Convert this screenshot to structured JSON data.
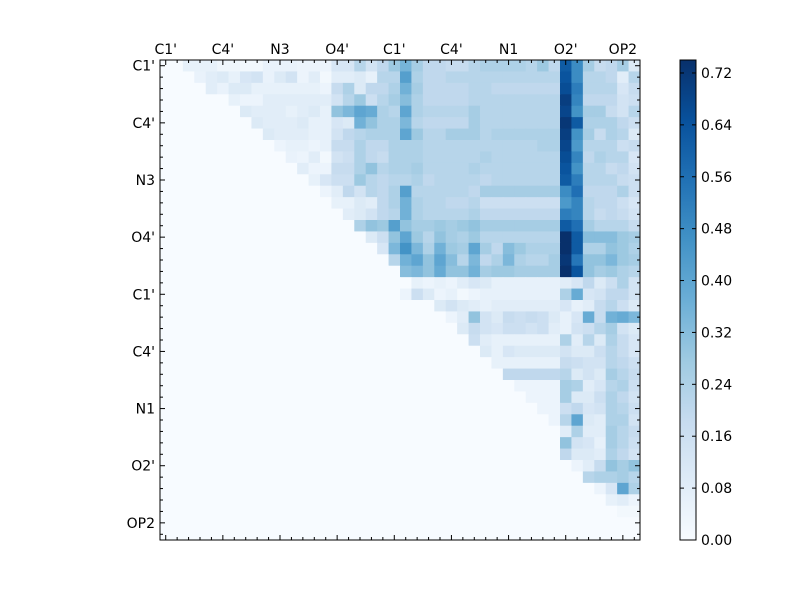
{
  "chart_data": {
    "type": "heatmap",
    "title": "",
    "colormap": "Blues",
    "row_labels": [
      "C1'",
      "C4'",
      "N3",
      "O4'",
      "C1'",
      "C4'",
      "N1",
      "O2'",
      "OP2"
    ],
    "col_labels": [
      "C1'",
      "C4'",
      "N3",
      "O4'",
      "C1'",
      "C4'",
      "N1",
      "O2'",
      "OP2"
    ],
    "n": 42,
    "label_positions": [
      0,
      5,
      10,
      15,
      20,
      25,
      30,
      35,
      40
    ],
    "upper_triangular": true,
    "colorbar": {
      "min": 0.0,
      "max": 0.74,
      "ticks": [
        "0.00",
        "0.08",
        "0.16",
        "0.24",
        "0.32",
        "0.40",
        "0.48",
        "0.56",
        "0.64",
        "0.72"
      ],
      "tick_values": [
        0.0,
        0.08,
        0.16,
        0.24,
        0.32,
        0.4,
        0.48,
        0.56,
        0.64,
        0.72
      ]
    },
    "rows": [
      "0:0.00;2-4:0.06;5-6:0.03;7-8:0.02;9-11:0.05;12-14:0.04;15-16:0.12;17:0.22;18:0.14;19:0.20;20:0.28;21:0.35;22:0.26;23-24:0.20;25-26:0.18;27:0.22;28-31:0.24;32:0.22;33:0.28;34:0.20;35:0.62;36:0.48;37:0.26;38:0.18;39:0.20;40:0.26;41:0.10",
      "1:0.00;3:0.05;4:0.08;5:0.10;6:0.06;7:0.12;8:0.14;9:0.05;10:0.10;11:0.14;12:0.04;13:0.08;14:0.02;15-16:0.08;17:0.10;18:0.06;19-20:0.22;21:0.42;22:0.24;23-24:0.20;25-28:0.22;29-34:0.22;35:0.64;36:0.48;37-38:0.22;39:0.20;40:0.08;41:0.22",
      "2:0.00;4:0.08;5:0.05;6-7:0.10;8:0.06;9-13:0.06;14:0.04;15:0.18;16:0.24;17:0.10;18-19:0.20;20:0.24;21:0.36;22:0.26;23-26:0.20;27-28:0.22;29-34:0.20;35:0.66;36:0.52;37-39:0.22;40:0.12;41:0.18",
      "3:0.00;6:0.06;7-8:0.04;9-11:0.08;12-14:0.08;15:0.14;16:0.22;17:0.28;18:0.16;19:0.22;20:0.26;21:0.32;22:0.24;23-26:0.20;27-28:0.22;29-34:0.22;35:0.70;36:0.50;37-39:0.20;40:0.14;41:0.16",
      "4:0.00;7:0.10;8-10:0.08;11:0.06;12:0.08;13:0.10;14:0.06;15:0.30;16:0.34;17:0.40;18:0.38;19:0.24;20:0.22;21:0.40;22:0.24;23-26:0.22;27:0.26;28-34:0.22;35:0.68;36:0.46;37-38:0.26;39:0.18;40:0.14;41:0.22",
      "5:0.00;8:0.10;9-11:0.08;12:0.10;13-14:0.06;15:0.12;16:0.10;17:0.36;18:0.30;19-20:0.24;21:0.34;22:0.22;23-26:0.20;27:0.26;28-34:0.22;35:0.72;36:0.62;37-39:0.24;40:0.20;41:0.16",
      "6:0.00;9:0.10;10-12:0.08;13-14:0.06;15:0.14;16:0.20;17:0.22;18-20:0.24;21:0.40;22:0.28;23-24:0.22;25-27:0.26;28:0.22;29:0.24;30-34:0.24;35:0.70;36:0.46;37:0.26;38:0.18;39:0.24;40:0.22;41:0.10",
      "7:0.00;10:0.04;11-12:0.06;13:0.04;14:0.06;15-16:0.18;17:0.24;18-19:0.20;20-22:0.24;23-28:0.22;29-32:0.22;33-34:0.24;35:0.68;36:0.44;37-38:0.22;39:0.22;40:0.16;41:0.18",
      "8:0.00;11:0.05;12:0.04;13:0.08;14:0.02;15:0.14;16:0.16;17:0.24;18:0.20;19:0.18;20-22:0.24;23-24:0.22;25-27:0.22;28:0.24;29-34:0.22;35:0.66;36:0.50;37:0.20;38:0.24;39:0.22;40:0.22;41:0.12",
      "9:0.00;12:0.08;13-14:0.04;15-16:0.18;17:0.24;18:0.30;19:0.22;20-21:0.24;22:0.26;23-24:0.22;25-26:0.22;27:0.24;28:0.22;29-34:0.22;35:0.64;36:0.46;37-38:0.22;39:0.18;40:0.20;41:0.14",
      "10:0.00;13:0.06;14:0.12;15-16:0.16;17:0.28;18:0.22;19:0.20;20-21:0.22;22:0.24;23:0.20;24-27:0.22;28:0.20;29-34:0.22;35:0.62;36:0.52;37-39:0.22;40:0.18;41:0.16",
      "11:0.00;14:0.04;15:0.08;16:0.20;17:0.14;18:0.22;19:0.20;20:0.24;21:0.42;22:0.22;23-26:0.22;27:0.20;28-34:0.26;35:0.48;36:0.56;37-39:0.20;40:0.24;41:0.16",
      "12:0.00;15-16:0.06;17:0.10;18:0.08;19:0.20;20:0.24;21:0.36;22:0.24;23-24:0.22;25-26:0.20;27:0.22;28-34:0.16;35:0.44;36:0.50;37:0.22;38-39:0.20;40:0.16;41:0.12",
      "13:0.00;16:0.08;17:0.10;18:0.14;19:0.20;20:0.22;21:0.36;22:0.24;23-24:0.22;25-26:0.22;27:0.24;28-34:0.20;35:0.52;36:0.50;37:0.22;38:0.18;39:0.20;40:0.18;41:0.14",
      "14:0.00;17:0.24;18:0.30;19:0.28;20:0.42;21:0.30;22-23:0.26;24:0.28;25:0.26;26:0.28;27:0.30;28:0.26;29-31:0.26;32-34:0.26;35:0.62;36:0.56;37:0.26;38:0.22;39-40:0.22;41:0.18",
      "15:0.00;18:0.10;19:0.16;20:0.30;21:0.40;22:0.28;23:0.22;24:0.30;25:0.26;26:0.24;27:0.28;28-30:0.22;31-34:0.22;35:0.74;36:0.62;37:0.32;38-39:0.32;40:0.28;41:0.26",
      "16:0.00;19:0.12;20:0.34;21:0.46;22:0.34;23:0.24;24:0.36;25:0.28;26:0.26;27:0.40;28:0.26;29:0.20;30:0.32;31:0.28;32-34:0.24;35:0.74;36:0.62;37-38:0.24;39:0.30;40:0.28;41:0.24",
      "17:0.00;20:0.22;21:0.36;22:0.40;23:0.30;24:0.40;25:0.32;26:0.22;27:0.34;28:0.20;29:0.24;30:0.34;31:0.24;32-33:0.22;34:0.26;35:0.72;36:0.54;37-38:0.30;39:0.34;40:0.28;41:0.26",
      "18:0.00;21:0.32;22:0.34;23:0.30;24:0.38;25:0.30;26:0.30;27:0.36;28:0.26;29-30:0.28;31-34:0.26;35:0.74;36:0.64;37:0.30;38:0.26;39:0.28;40:0.24;41:0.22",
      "19:0.00;22:0.06;23:0.04;24:0.06;25:0.04;26:0.08;27:0.12;28:0.10;29-34:0.06;35:0.08;36:0.12;37:0.20;38:0.10;39:0.16;40:0.24;41:0.14",
      "20:0.00;21:0.04;22:0.16;23:0.10;24:0.04;25:0.06;26:0.02;27:0.04;28-34:0.06;35:0.24;36:0.38;37:0.12;38:0.14;39:0.20;40:0.20;41:0.14",
      "21:0.00;24:0.10;25:0.14;26:0.10;27:0.08;28:0.06;29-34:0.08;35:0.12;36:0.06;37:0.08;38:0.18;39:0.22;40:0.16;41:0.10",
      "22:0.00;25:0.04;26:0.08;27:0.30;28:0.14;29:0.10;30:0.18;31:0.16;32:0.18;33:0.16;34:0.10;35:0.06;36:0.12;37:0.38;38:0.18;39:0.36;40:0.38;41:0.34",
      "23:0.00;26:0.10;27:0.18;28:0.14;29:0.12;30:0.16;31:0.16;32:0.14;33:0.16;34:0.08;35:0.06;36:0.14;37:0.16;38:0.22;39:0.26;40:0.14;41:0.10",
      "24:0.00;27:0.16;28:0.08;29-34:0.06;35:0.24;36:0.08;37:0.22;38:0.10;39:0.24;40:0.18;41:0.12",
      "25:0.00;28:0.10;29:0.06;30:0.12;31-34:0.10;35:0.14;36:0.10;37:0.10;38:0.16;39:0.22;40:0.18;41:0.12",
      "26:0.00;29:0.06;30-34:0.06;35:0.18;36:0.16;37-38:0.14;39:0.22;40:0.20;41:0.16",
      "27:0.00;30:0.20;31-34:0.20;35:0.22;36:0.10;37:0.14;38:0.10;39:0.26;40:0.22;41:0.18",
      "28:0.00;31:0.04;32-34:0.04;35:0.26;36:0.24;37:0.08;38:0.12;39:0.22;40:0.24;41:0.16",
      "29:0.00;32:0.04;33-34:0.04;35:0.26;36:0.10;37:0.10;38:0.16;39:0.24;40:0.20;41:0.14",
      "30:0.00;33:0.04;34:0.04;35:0.16;36:0.20;37:0.12;38:0.14;39:0.24;40:0.22;41:0.16",
      "31:0.00;34:0.04;35:0.22;36:0.40;37:0.10;38:0.08;39:0.24;40:0.24;41:0.14",
      "32:0.00;35:0.08;36:0.24;37-38:0.08;39:0.26;40:0.22;41:0.18",
      "33:0.00;35:0.30;36:0.14;37:0.12;38:0.06;39:0.26;40:0.22;41:0.16",
      "34:0.00;35:0.20;36:0.10;37:0.10;38:0.08;39:0.24;40:0.20;41:0.14",
      "35:0.00;36:0.04;37:0.08;38:0.18;39:0.30;40:0.26;41:0.30",
      "36:0.00;37:0.22;38:0.24;39:0.24;40:0.26;41:0.22",
      "37:0.00;38:0.04;39:0.12;40:0.40;41:0.24",
      "38:0.00;39:0.06;40:0.08;41:0.04",
      "39:0.00;40:0.02",
      "40:0.00",
      "41:0.00"
    ]
  }
}
